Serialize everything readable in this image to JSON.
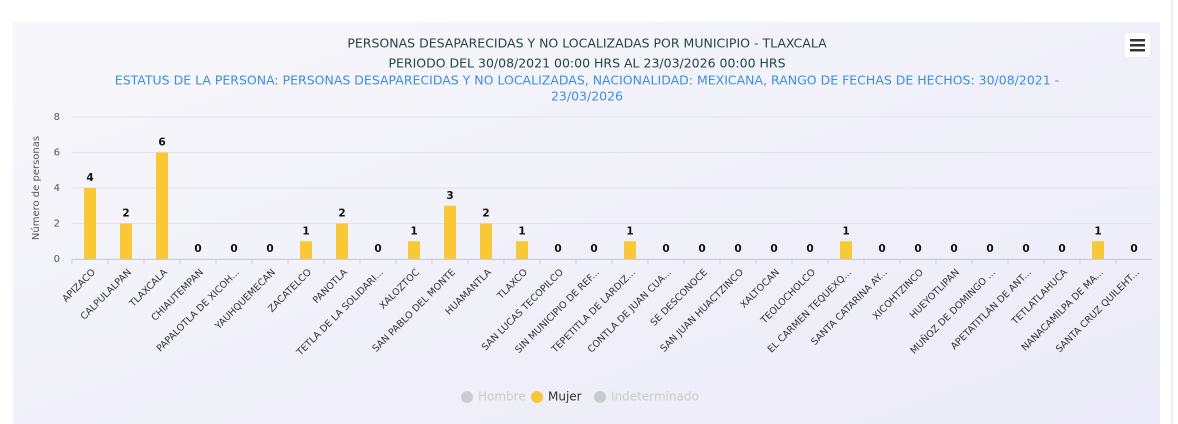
{
  "chart_data": {
    "type": "bar",
    "title": "PERSONAS DESAPARECIDAS Y NO LOCALIZADAS POR MUNICIPIO - TLAXCALA",
    "subtitle": "PERIODO DEL 30/08/2021 00:00 HRS AL 23/03/2026 00:00 HRS",
    "filter_lines": [
      "ESTATUS DE LA PERSONA: PERSONAS DESAPARECIDAS Y NO LOCALIZADAS, NACIONALIDAD: MEXICANA, RANGO DE FECHAS DE HECHOS: 30/08/2021 -",
      "23/03/2026"
    ],
    "y_label": "Número de personas",
    "categories": [
      "APIZACO",
      "CALPULALPAN",
      "TLAXCALA",
      "CHIAUTEMPAN",
      "PAPALOTLA DE XICOH...",
      "YAUHQUEMECAN",
      "ZACATELCO",
      "PANOTLA",
      "TETLA DE LA SOLIDARI...",
      "XALOZTOC",
      "SAN PABLO DEL MONTE",
      "HUAMANTLA",
      "TLAXCO",
      "SAN LUCAS TECOPILCO",
      "SIN MUNICIPIO DE REF...",
      "TEPETITLA DE LARDIZ...",
      "CONTLA DE JUAN CUA...",
      "SE DESCONOCE",
      "SAN JUAN HUACTZINCO",
      "XALTOCAN",
      "TEOLOCHOLCO",
      "EL CARMEN TEQUEXQ...",
      "SANTA CATARINA AY...",
      "XICOHTZINCO",
      "HUEYOTLIPAN",
      "MUÑOZ DE DOMINGO ...",
      "APETATITLÁN DE ANT...",
      "TETLATLAHUCA",
      "NANACAMILPA DE MA...",
      "SANTA CRUZ QUILEHT..."
    ],
    "series": [
      {
        "name": "Hombre",
        "color": "#cccccc",
        "visible": false
      },
      {
        "name": "Mujer",
        "color": "#f9c837",
        "visible": true,
        "values": [
          4,
          2,
          6,
          0,
          0,
          0,
          1,
          2,
          0,
          1,
          3,
          2,
          1,
          0,
          0,
          1,
          0,
          0,
          0,
          0,
          0,
          1,
          0,
          0,
          0,
          0,
          0,
          0,
          1,
          0
        ]
      },
      {
        "name": "Indeterminado",
        "color": "#cccccc",
        "visible": false
      }
    ],
    "ylim": [
      0,
      8
    ],
    "yticks": [
      0,
      2,
      4,
      6,
      8
    ],
    "grid": true,
    "legend_position": "bottom"
  }
}
